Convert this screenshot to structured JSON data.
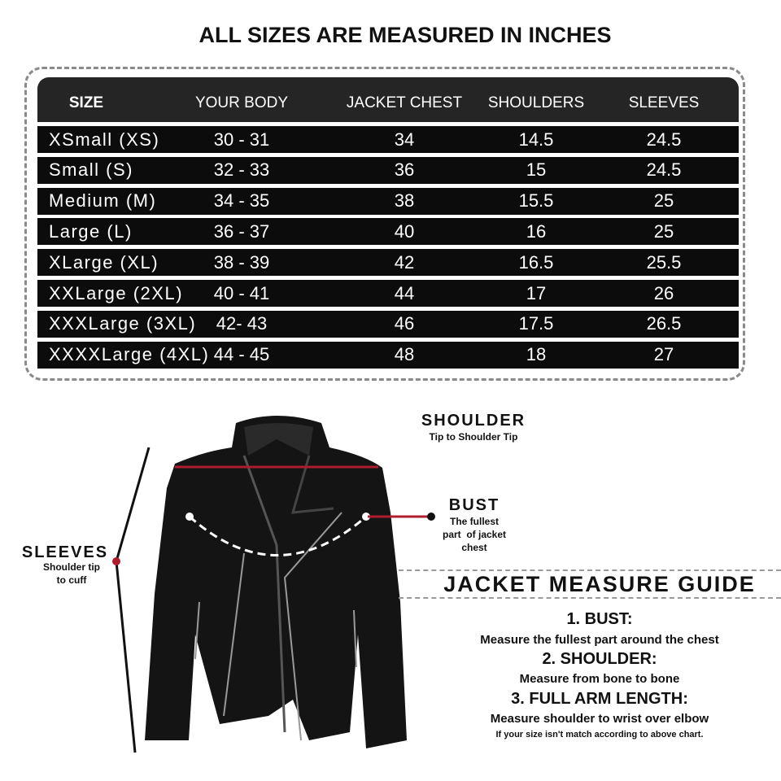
{
  "title": "ALL SIZES ARE MEASURED IN INCHES",
  "table": {
    "headers": [
      "SIZE",
      "YOUR BODY",
      "JACKET CHEST",
      "SHOULDERS",
      "SLEEVES"
    ],
    "rows": [
      [
        "XSmall (XS)",
        "30 - 31",
        "34",
        "14.5",
        "24.5"
      ],
      [
        "Small (S)",
        "32 - 33",
        "36",
        "15",
        "24.5"
      ],
      [
        "Medium (M)",
        "34 - 35",
        "38",
        "15.5",
        "25"
      ],
      [
        "Large (L)",
        "36 - 37",
        "40",
        "16",
        "25"
      ],
      [
        "XLarge (XL)",
        "38 - 39",
        "42",
        "16.5",
        "25.5"
      ],
      [
        "XXLarge (2XL)",
        "40 - 41",
        "44",
        "17",
        "26"
      ],
      [
        "XXXLarge (3XL)",
        "42- 43",
        "46",
        "17.5",
        "26.5"
      ],
      [
        "XXXXLarge (4XL)",
        "44 - 45",
        "48",
        "18",
        "27"
      ]
    ]
  },
  "diagram": {
    "shoulder": {
      "title": "SHOULDER",
      "desc": "Tip to Shoulder Tip"
    },
    "bust": {
      "title": "BUST",
      "desc_lines": [
        "The fullest",
        "part  of jacket",
        "chest"
      ]
    },
    "sleeves": {
      "title": "SLEEVES",
      "desc_lines": [
        "Shoulder tip",
        "to cuff"
      ]
    }
  },
  "guide": {
    "title": "JACKET MEASURE GUIDE",
    "items": [
      {
        "heading": "1. BUST:",
        "desc": "Measure the fullest part around the chest"
      },
      {
        "heading": "2. SHOULDER:",
        "desc": "Measure from bone to bone"
      },
      {
        "heading": "3. FULL ARM LENGTH:",
        "desc": "Measure shoulder to wrist over elbow"
      }
    ],
    "note": "If your size isn't match according to above chart."
  },
  "colors": {
    "marker_red": "#b01c2e",
    "header_bg": "#252525",
    "row_bg": "#0c0c0c"
  }
}
